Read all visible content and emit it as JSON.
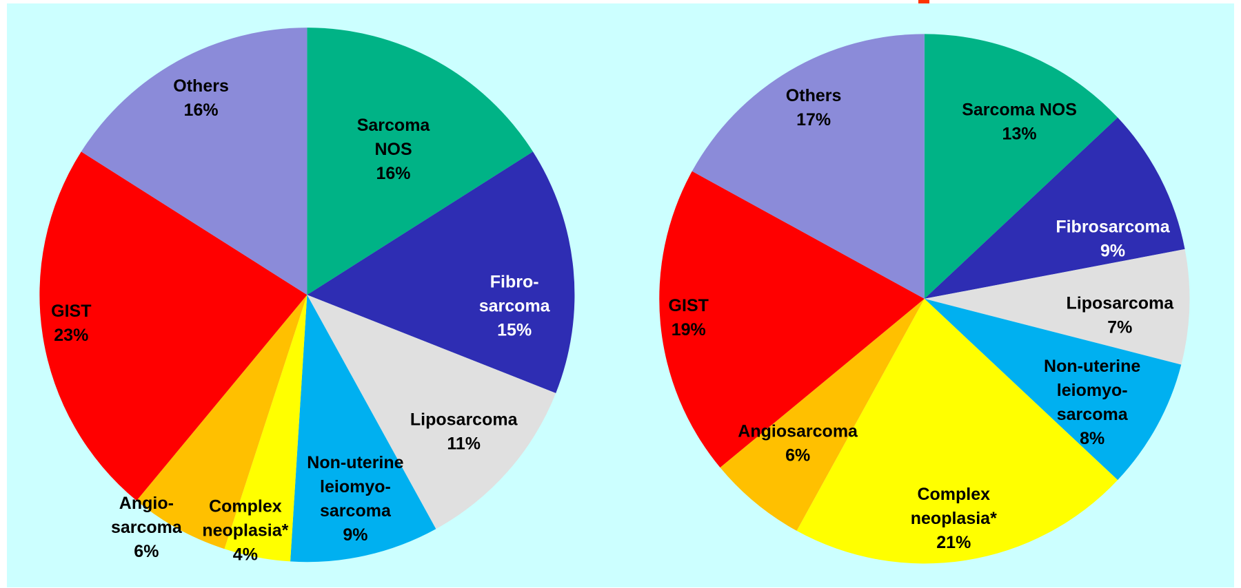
{
  "chart_data": [
    {
      "type": "pie",
      "categories": [
        [
          "Sarcoma",
          "NOS"
        ],
        [
          "Fibro-",
          "sarcoma"
        ],
        [
          "Liposarcoma"
        ],
        [
          "Non-uterine",
          "leiomyo-",
          "sarcoma"
        ],
        [
          "Complex",
          "neoplasia*"
        ],
        [
          "Angio-",
          "sarcoma"
        ],
        [
          "GIST"
        ],
        [
          "Others"
        ]
      ],
      "values": [
        16,
        15,
        11,
        9,
        4,
        6,
        23,
        16
      ],
      "value_labels": [
        "16%",
        "15%",
        "11%",
        "9%",
        "4%",
        "6%",
        "23%",
        "16%"
      ],
      "colors": [
        "#00b386",
        "#2e2db3",
        "#e0e0e0",
        "#00b0f0",
        "#ffff00",
        "#ffc000",
        "#ff0000",
        "#8b8bd9"
      ],
      "label_colors": [
        "#000000",
        "#ffffff",
        "#000000",
        "#000000",
        "#000000",
        "#000000",
        "#000000",
        "#000000"
      ]
    },
    {
      "type": "pie",
      "categories": [
        [
          "Sarcoma NOS"
        ],
        [
          "Fibrosarcoma"
        ],
        [
          "Liposarcoma"
        ],
        [
          "Non-uterine",
          "leiomyo-",
          "sarcoma"
        ],
        [
          "Complex",
          "neoplasia*"
        ],
        [
          "Angiosarcoma"
        ],
        [
          "GIST"
        ],
        [
          "Others"
        ]
      ],
      "values": [
        13,
        9,
        7,
        8,
        21,
        6,
        19,
        17
      ],
      "value_labels": [
        "13%",
        "9%",
        "7%",
        "8%",
        "21%",
        "6%",
        "19%",
        "17%"
      ],
      "colors": [
        "#00b386",
        "#2e2db3",
        "#e0e0e0",
        "#00b0f0",
        "#ffff00",
        "#ffc000",
        "#ff0000",
        "#8b8bd9"
      ],
      "label_colors": [
        "#000000",
        "#ffffff",
        "#000000",
        "#000000",
        "#000000",
        "#000000",
        "#000000",
        "#000000"
      ]
    }
  ]
}
